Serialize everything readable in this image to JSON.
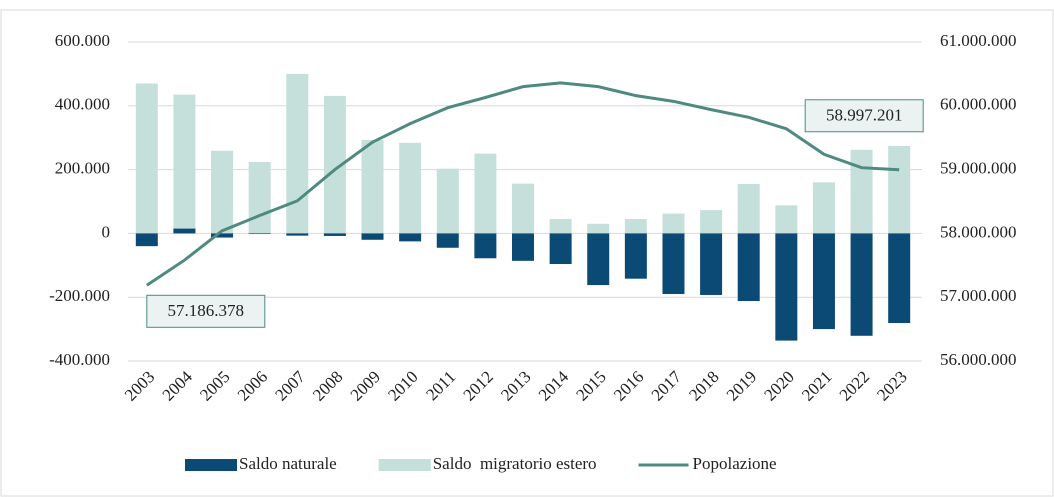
{
  "chart_data": {
    "type": "bar_line",
    "categories": [
      "2003",
      "2004",
      "2005",
      "2006",
      "2007",
      "2008",
      "2009",
      "2010",
      "2011",
      "2012",
      "2013",
      "2014",
      "2015",
      "2016",
      "2017",
      "2018",
      "2019",
      "2020",
      "2021",
      "2022",
      "2023"
    ],
    "series": [
      {
        "name": "Saldo naturale",
        "type": "bar",
        "color": "#0b4a74",
        "values": [
          -40000,
          15000,
          -13000,
          -2000,
          -7000,
          -8000,
          -20000,
          -25000,
          -45000,
          -78000,
          -86000,
          -96000,
          -162000,
          -142000,
          -190000,
          -193000,
          -212000,
          -336000,
          -300000,
          -321000,
          -281000
        ]
      },
      {
        "name": "Saldo  migratorio estero",
        "type": "bar",
        "color": "#c5dfdb",
        "values": [
          470000,
          435000,
          259000,
          224000,
          500000,
          431000,
          293000,
          284000,
          203000,
          250000,
          156000,
          45000,
          30000,
          45000,
          62000,
          73000,
          155000,
          88000,
          160000,
          262000,
          274000
        ]
      },
      {
        "name": "Popolazione",
        "type": "line",
        "axis": "y2",
        "color": "#4f8a80",
        "values": [
          57186378,
          57580000,
          58040000,
          58280000,
          58510000,
          59000000,
          59430000,
          59720000,
          59970000,
          60130000,
          60300000,
          60360000,
          60300000,
          60160000,
          60070000,
          59940000,
          59820000,
          59640000,
          59240000,
          59030000,
          58997201
        ],
        "value_labels": [
          "57.186.378",
          null,
          null,
          null,
          null,
          null,
          null,
          null,
          null,
          null,
          null,
          null,
          null,
          null,
          null,
          null,
          null,
          null,
          null,
          null,
          "58.997.201"
        ]
      }
    ],
    "ylim": [
      -400000,
      600000
    ],
    "yticks": [
      {
        "value": -400000,
        "label": "-400.000"
      },
      {
        "value": -200000,
        "label": "-200.000"
      },
      0,
      {
        "value": 200000,
        "label": "200.000"
      },
      {
        "value": 400000,
        "label": "400.000"
      },
      {
        "value": 600000,
        "label": "600.000"
      }
    ],
    "y2lim": [
      56000000,
      61000000
    ],
    "y2ticks": [
      {
        "value": 56000000,
        "label": "56.000.000"
      },
      {
        "value": 57000000,
        "label": "57.000.000"
      },
      {
        "value": 58000000,
        "label": "58.000.000"
      },
      {
        "value": 59000000,
        "label": "59.000.000"
      },
      {
        "value": 60000000,
        "label": "60.000.000"
      },
      {
        "value": 61000000,
        "label": "61.000.000"
      }
    ],
    "grid": true,
    "legend": "bottom"
  }
}
